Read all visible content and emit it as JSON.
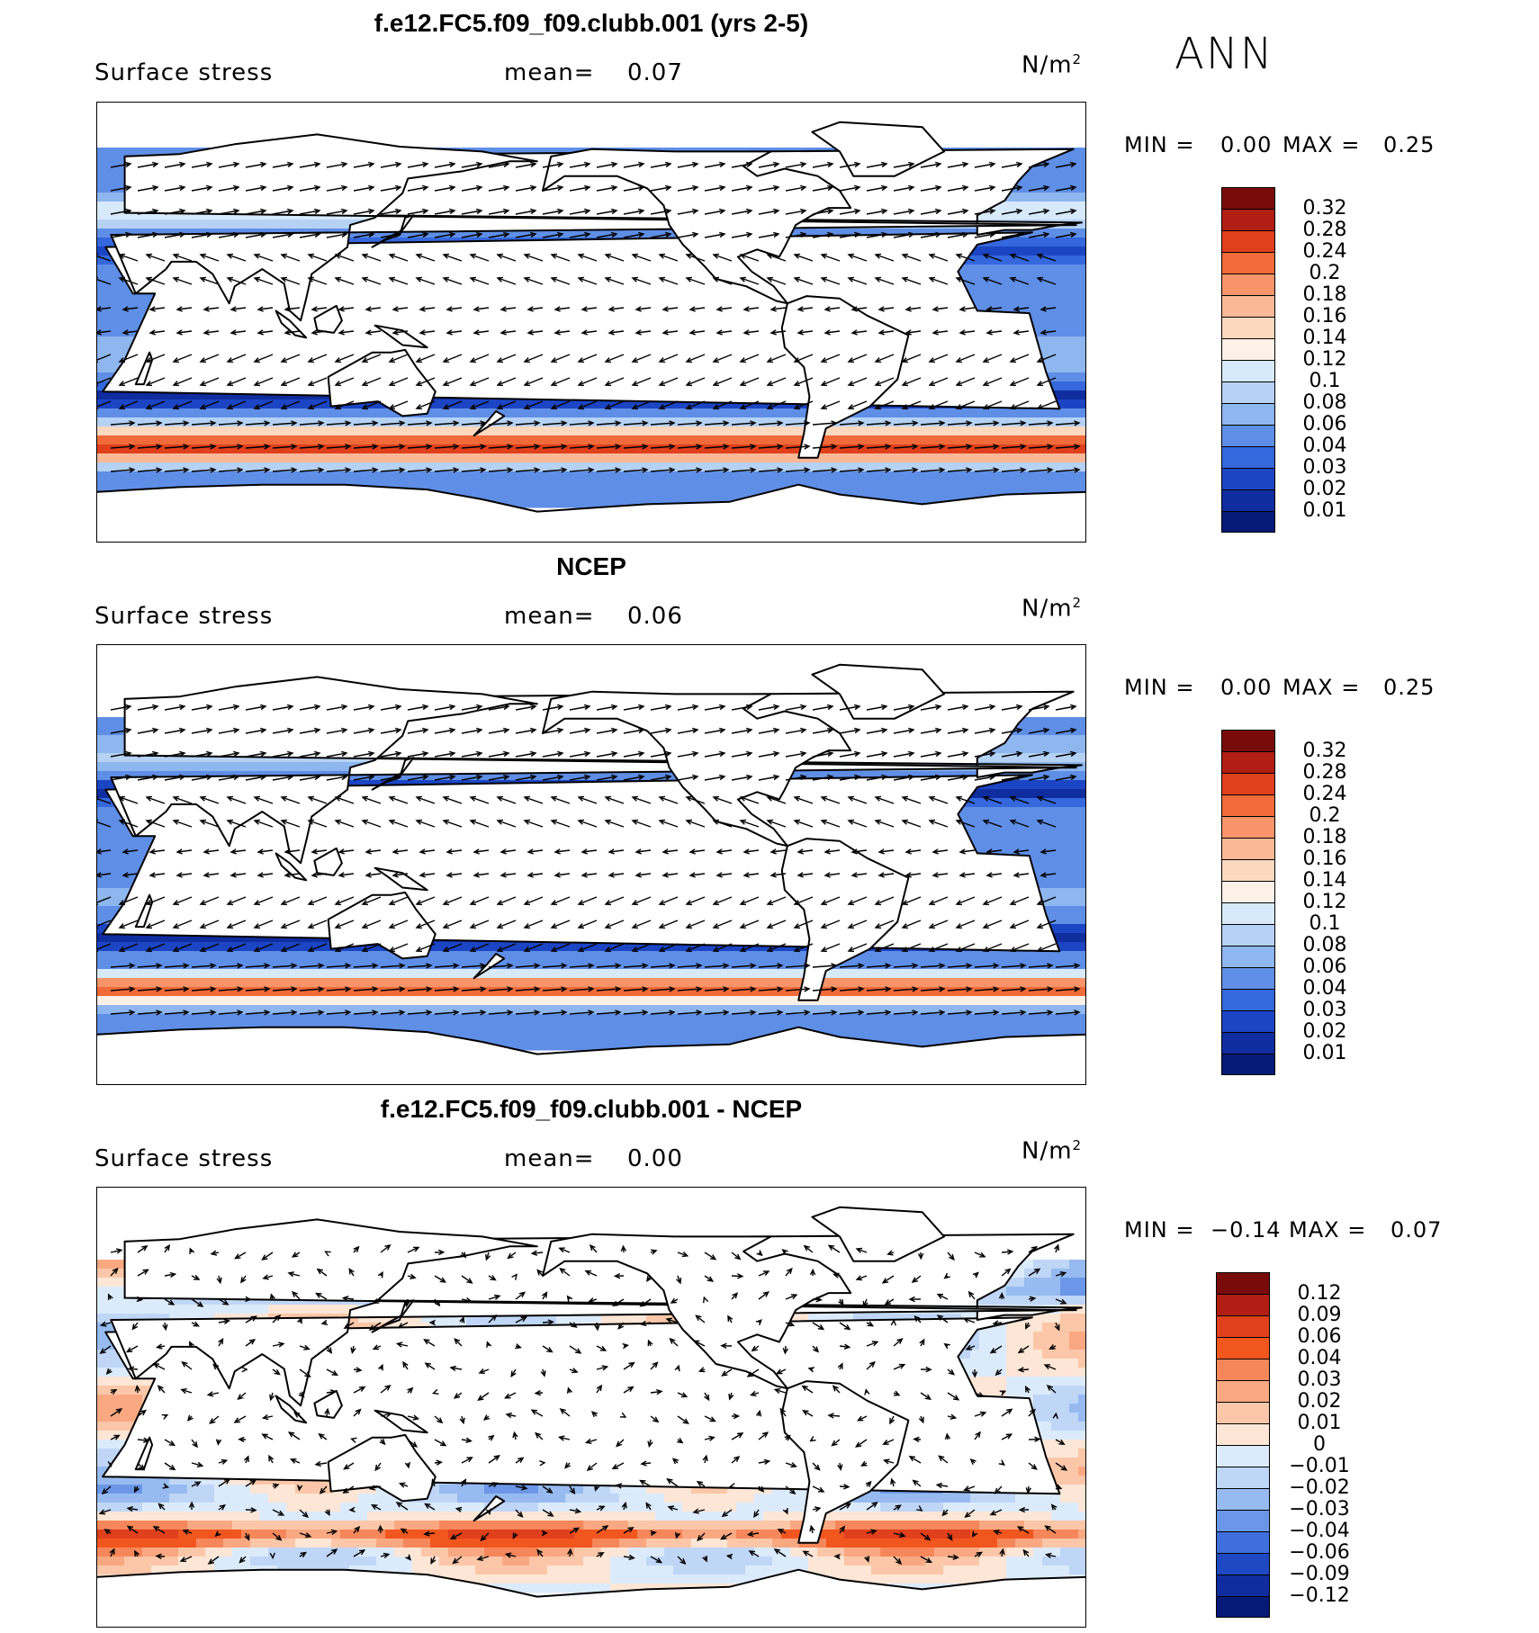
{
  "season": "ANN",
  "panels": [
    {
      "id": "model",
      "title": "f.e12.FC5.f09_f09.clubb.001 (yrs 2-5)",
      "variable": "Surface stress",
      "mean_label": "mean=",
      "mean_value": "0.07",
      "units_base": "N/m",
      "units_exp": "2",
      "min_label": "MIN =",
      "min_value": "0.00",
      "max_label": "MAX =",
      "max_value": "0.25",
      "field": "model",
      "colorbar": {
        "levels": [
          "0.32",
          "0.28",
          "0.24",
          "0.2",
          "0.18",
          "0.16",
          "0.14",
          "0.12",
          "0.1",
          "0.08",
          "0.06",
          "0.04",
          "0.03",
          "0.02",
          "0.01"
        ],
        "colors": [
          "#7a0b0b",
          "#b01e14",
          "#e0401c",
          "#f06a3a",
          "#f8946a",
          "#fbb896",
          "#fcd8bf",
          "#fdf0e6",
          "#d7eafb",
          "#b5d2f5",
          "#8eb6ef",
          "#5f8ee6",
          "#3567dd",
          "#1c45c4",
          "#0f2d9f",
          "#061a78"
        ]
      }
    },
    {
      "id": "obs",
      "title": "NCEP",
      "variable": "Surface stress",
      "mean_label": "mean=",
      "mean_value": "0.06",
      "units_base": "N/m",
      "units_exp": "2",
      "min_label": "MIN =",
      "min_value": "0.00",
      "max_label": "MAX =",
      "max_value": "0.25",
      "field": "obs",
      "colorbar": {
        "levels": [
          "0.32",
          "0.28",
          "0.24",
          "0.2",
          "0.18",
          "0.16",
          "0.14",
          "0.12",
          "0.1",
          "0.08",
          "0.06",
          "0.04",
          "0.03",
          "0.02",
          "0.01"
        ],
        "colors": [
          "#7a0b0b",
          "#b01e14",
          "#e0401c",
          "#f06a3a",
          "#f8946a",
          "#fbb896",
          "#fcd8bf",
          "#fdf0e6",
          "#d7eafb",
          "#b5d2f5",
          "#8eb6ef",
          "#5f8ee6",
          "#3567dd",
          "#1c45c4",
          "#0f2d9f",
          "#061a78"
        ]
      }
    },
    {
      "id": "diff",
      "title": "f.e12.FC5.f09_f09.clubb.001 - NCEP",
      "variable": "Surface stress",
      "mean_label": "mean=",
      "mean_value": "0.00",
      "units_base": "N/m",
      "units_exp": "2",
      "min_label": "MIN =",
      "min_value": "−0.14",
      "max_label": "MAX =",
      "max_value": "0.07",
      "field": "diff",
      "colorbar": {
        "levels": [
          "0.12",
          "0.09",
          "0.06",
          "0.04",
          "0.03",
          "0.02",
          "0.01",
          "0",
          "−0.01",
          "−0.02",
          "−0.03",
          "−0.04",
          "−0.06",
          "−0.09",
          "−0.12"
        ],
        "colors": [
          "#7a0b0b",
          "#b01e14",
          "#e0401c",
          "#f2561f",
          "#f6875a",
          "#f9a882",
          "#fbc7a8",
          "#fde6d6",
          "#dcebfb",
          "#bfd6f6",
          "#97bbf0",
          "#6c97e8",
          "#3f6fdd",
          "#1f48c3",
          "#0f2d9f",
          "#061a78"
        ]
      }
    }
  ]
}
